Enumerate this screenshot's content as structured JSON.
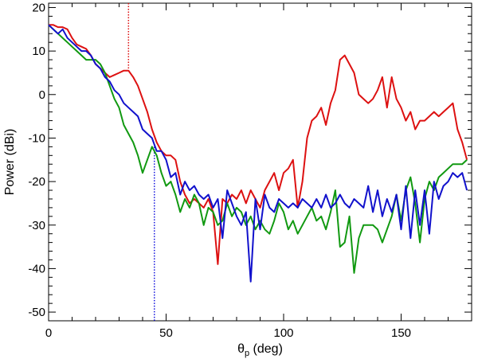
{
  "chart_data": {
    "type": "line",
    "xlabel": {
      "prefix": "θ",
      "sub": "p",
      "suffix": " (deg)"
    },
    "ylabel": "Power (dBi)",
    "xlim": [
      0,
      180
    ],
    "ylim": [
      -52,
      21
    ],
    "xticks": [
      0,
      50,
      100,
      150
    ],
    "yticks": [
      20,
      10,
      0,
      -10,
      -20,
      -30,
      -40,
      -50
    ],
    "grid": false,
    "legend": "none",
    "markers": [
      {
        "x": 34,
        "y_from": 21,
        "y_to": 5,
        "color": "#dd1111",
        "style": "dotted"
      },
      {
        "x": 45,
        "y_from": -12,
        "y_to": -52,
        "color": "#1111dd",
        "style": "dotted"
      }
    ],
    "series": [
      {
        "color": "#dd1111",
        "x": [
          0,
          2,
          4,
          6,
          8,
          10,
          12,
          14,
          16,
          18,
          20,
          22,
          24,
          26,
          28,
          30,
          32,
          34,
          36,
          38,
          40,
          42,
          44,
          46,
          48,
          50,
          52,
          54,
          56,
          58,
          60,
          62,
          64,
          66,
          68,
          70,
          72,
          74,
          76,
          78,
          80,
          82,
          84,
          86,
          88,
          90,
          92,
          94,
          96,
          98,
          100,
          102,
          104,
          106,
          108,
          110,
          112,
          114,
          116,
          118,
          120,
          122,
          124,
          126,
          128,
          130,
          132,
          134,
          136,
          138,
          140,
          142,
          144,
          146,
          148,
          150,
          152,
          154,
          156,
          158,
          160,
          162,
          164,
          166,
          168,
          170,
          172,
          174,
          176,
          178
        ],
        "y": [
          16,
          16,
          15.5,
          15.5,
          15,
          13,
          11.5,
          11,
          10.5,
          9,
          7,
          6,
          5,
          4,
          4.5,
          5,
          5.5,
          5.5,
          4,
          2,
          -1,
          -4,
          -8,
          -11,
          -13,
          -14,
          -14,
          -15,
          -20,
          -23,
          -25,
          -24,
          -25,
          -26,
          -24,
          -27,
          -39,
          -24,
          -25,
          -23,
          -24,
          -22,
          -25,
          -22,
          -24,
          -26,
          -22,
          -20,
          -18,
          -22,
          -18,
          -17,
          -15,
          -26,
          -20,
          -10,
          -6,
          -5,
          -3,
          -7,
          -2,
          1,
          8,
          9,
          7,
          5,
          0,
          -1,
          -2,
          -1,
          1,
          4,
          -3,
          4,
          -1,
          -3,
          -6,
          -4,
          -8,
          -6,
          -6,
          -5,
          -4,
          -5,
          -4,
          -3,
          -2,
          -8,
          -11,
          -15
        ]
      },
      {
        "color": "#119911",
        "x": [
          0,
          2,
          4,
          6,
          8,
          10,
          12,
          14,
          16,
          18,
          20,
          22,
          24,
          26,
          28,
          30,
          32,
          34,
          36,
          38,
          40,
          42,
          44,
          46,
          48,
          50,
          52,
          54,
          56,
          58,
          60,
          62,
          64,
          66,
          68,
          70,
          72,
          74,
          76,
          78,
          80,
          82,
          84,
          86,
          88,
          90,
          92,
          94,
          96,
          98,
          100,
          102,
          104,
          106,
          108,
          110,
          112,
          114,
          116,
          118,
          120,
          122,
          124,
          126,
          128,
          130,
          132,
          134,
          136,
          138,
          140,
          142,
          144,
          146,
          148,
          150,
          152,
          154,
          156,
          158,
          160,
          162,
          164,
          166,
          168,
          170,
          172,
          174,
          176,
          178
        ],
        "y": [
          16,
          15,
          14,
          13,
          12,
          11,
          10,
          9,
          8,
          8,
          8,
          7,
          5,
          2,
          -1,
          -3,
          -7,
          -9,
          -11,
          -14,
          -18,
          -15,
          -12,
          -14,
          -18,
          -21,
          -20,
          -23,
          -27,
          -24,
          -26,
          -23,
          -25,
          -30,
          -26,
          -27,
          -30,
          -29,
          -25,
          -28,
          -26,
          -27,
          -30,
          -28,
          -31,
          -29,
          -31,
          -32,
          -29,
          -25,
          -27,
          -31,
          -29,
          -32,
          -30,
          -28,
          -26,
          -29,
          -28,
          -31,
          -27,
          -22,
          -35,
          -34,
          -28,
          -41,
          -33,
          -30,
          -30,
          -30,
          -31,
          -34,
          -31,
          -28,
          -23,
          -29,
          -22,
          -19,
          -25,
          -34,
          -24,
          -20,
          -22,
          -19,
          -18,
          -17,
          -16,
          -16,
          -16,
          -15
        ]
      },
      {
        "color": "#1111cc",
        "x": [
          0,
          2,
          4,
          6,
          8,
          10,
          12,
          14,
          16,
          18,
          20,
          22,
          24,
          26,
          28,
          30,
          32,
          34,
          36,
          38,
          40,
          42,
          44,
          46,
          48,
          50,
          52,
          54,
          56,
          58,
          60,
          62,
          64,
          66,
          68,
          70,
          72,
          74,
          76,
          78,
          80,
          82,
          84,
          86,
          88,
          90,
          92,
          94,
          96,
          98,
          100,
          102,
          104,
          106,
          108,
          110,
          112,
          114,
          116,
          118,
          120,
          122,
          124,
          126,
          128,
          130,
          132,
          134,
          136,
          138,
          140,
          142,
          144,
          146,
          148,
          150,
          152,
          154,
          156,
          158,
          160,
          162,
          164,
          166,
          168,
          170,
          172,
          174,
          176,
          178
        ],
        "y": [
          16,
          15,
          14,
          15,
          13,
          12,
          11,
          10,
          10,
          9,
          7,
          6,
          4,
          3,
          1,
          0,
          -2,
          -3,
          -4,
          -5,
          -8,
          -9,
          -10,
          -13,
          -13,
          -15,
          -19,
          -18,
          -23,
          -20,
          -22,
          -21,
          -23,
          -24,
          -23,
          -26,
          -24,
          -33,
          -22,
          -25,
          -28,
          -30,
          -27,
          -43,
          -24,
          -31,
          -23,
          -26,
          -27,
          -24,
          -25,
          -26,
          -25,
          -26,
          -24,
          -25,
          -26,
          -24,
          -26,
          -23,
          -26,
          -25,
          -23,
          -25,
          -26,
          -24,
          -25,
          -26,
          -21,
          -27,
          -22,
          -28,
          -24,
          -27,
          -23,
          -31,
          -21,
          -33,
          -22,
          -30,
          -22,
          -32,
          -20,
          -24,
          -21,
          -20,
          -18,
          -19,
          -18,
          -22
        ]
      }
    ]
  }
}
